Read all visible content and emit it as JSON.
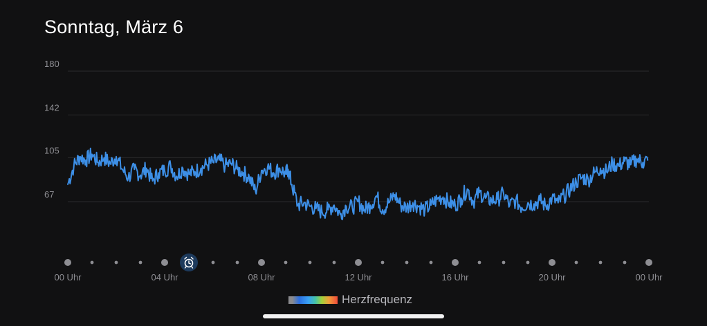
{
  "header": {
    "title": "Sonntag, März 6"
  },
  "legend": {
    "label": "Herzfrequenz"
  },
  "colors": {
    "background": "#111112",
    "line": "#3d8fe6",
    "gridline": "#2c2c2e",
    "tick_text": "#8e8e93",
    "dot": "#8e8e93",
    "alarm_badge": "#1d3a5c",
    "alarm_icon": "#ffffff"
  },
  "chart_data": {
    "type": "line",
    "title": "",
    "xlabel": "",
    "ylabel": "",
    "xlim": [
      0,
      24
    ],
    "ylim": [
      30,
      180
    ],
    "yticks": [
      "180",
      "142",
      "105",
      "67"
    ],
    "ytick_values": [
      180,
      142,
      105,
      67
    ],
    "xticks": [
      "00 Uhr",
      "04 Uhr",
      "08 Uhr",
      "12 Uhr",
      "16 Uhr",
      "20 Uhr",
      "00 Uhr"
    ],
    "xtick_values": [
      0,
      4,
      8,
      12,
      16,
      20,
      24
    ],
    "grid": true,
    "legend_position": "bottom-center",
    "alarm_marker_hour": 5,
    "series": [
      {
        "name": "Herzfrequenz",
        "x": [
          0,
          0.25,
          0.5,
          0.75,
          1,
          1.25,
          1.5,
          1.75,
          2,
          2.25,
          2.5,
          2.75,
          3,
          3.25,
          3.5,
          3.75,
          4,
          4.25,
          4.5,
          4.75,
          5,
          5.25,
          5.5,
          5.75,
          6,
          6.25,
          6.5,
          6.75,
          7,
          7.25,
          7.5,
          7.75,
          8,
          8.25,
          8.5,
          8.75,
          9,
          9.1,
          9.25,
          9.5,
          9.75,
          10,
          10.25,
          10.5,
          10.75,
          11,
          11.25,
          11.5,
          11.75,
          12,
          12.25,
          12.5,
          12.75,
          13,
          13.25,
          13.5,
          13.75,
          14,
          14.25,
          14.5,
          14.75,
          15,
          15.25,
          15.5,
          15.75,
          16,
          16.25,
          16.5,
          16.75,
          17,
          17.25,
          17.5,
          17.75,
          18,
          18.25,
          18.5,
          18.75,
          19,
          19.25,
          19.5,
          19.75,
          20,
          20.25,
          20.5,
          20.75,
          21,
          21.25,
          21.5,
          21.75,
          22,
          22.25,
          22.5,
          22.75,
          23,
          23.25,
          23.5,
          23.75,
          23.95
        ],
        "values": [
          82,
          98,
          106,
          103,
          108,
          101,
          105,
          100,
          106,
          95,
          88,
          95,
          90,
          96,
          85,
          92,
          94,
          98,
          89,
          96,
          91,
          93,
          96,
          99,
          101,
          103,
          98,
          100,
          95,
          92,
          88,
          76,
          94,
          97,
          92,
          96,
          91,
          95,
          82,
          64,
          66,
          63,
          61,
          58,
          60,
          64,
          56,
          63,
          62,
          67,
          60,
          64,
          72,
          60,
          66,
          73,
          64,
          62,
          66,
          63,
          60,
          64,
          69,
          71,
          66,
          64,
          70,
          78,
          67,
          75,
          70,
          68,
          69,
          74,
          64,
          68,
          62,
          66,
          65,
          68,
          63,
          70,
          66,
          72,
          78,
          84,
          88,
          86,
          92,
          96,
          93,
          100,
          98,
          102,
          99,
          104,
          101,
          103
        ]
      }
    ]
  }
}
